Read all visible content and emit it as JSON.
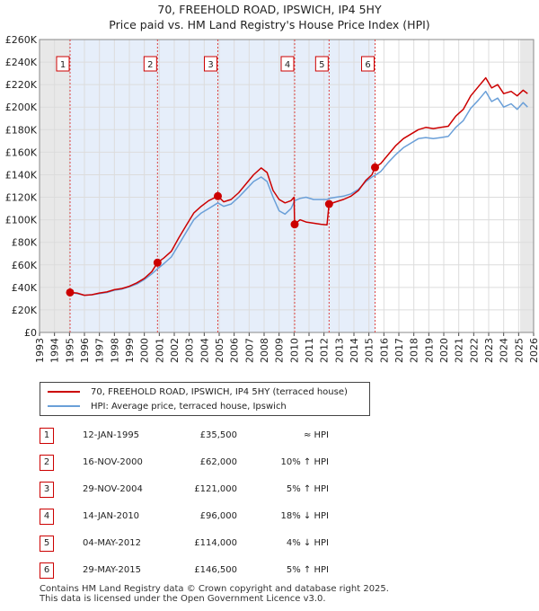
{
  "chart_data": {
    "type": "line",
    "title": "70, FREEHOLD ROAD, IPSWICH, IP4 5HY",
    "subtitle": "Price paid vs. HM Land Registry's House Price Index (HPI)",
    "xlim": [
      1993,
      2026
    ],
    "ylim": [
      0,
      260000
    ],
    "x_ticks": [
      1993,
      1994,
      1995,
      1996,
      1997,
      1998,
      1999,
      2000,
      2001,
      2002,
      2003,
      2004,
      2005,
      2006,
      2007,
      2008,
      2009,
      2010,
      2011,
      2012,
      2013,
      2014,
      2015,
      2016,
      2017,
      2018,
      2019,
      2020,
      2021,
      2022,
      2023,
      2024,
      2025,
      2026
    ],
    "y_ticks": [
      {
        "value": 0,
        "label": "£0"
      },
      {
        "value": 20000,
        "label": "£20K"
      },
      {
        "value": 40000,
        "label": "£40K"
      },
      {
        "value": 60000,
        "label": "£60K"
      },
      {
        "value": 80000,
        "label": "£80K"
      },
      {
        "value": 100000,
        "label": "£100K"
      },
      {
        "value": 120000,
        "label": "£120K"
      },
      {
        "value": 140000,
        "label": "£140K"
      },
      {
        "value": 160000,
        "label": "£160K"
      },
      {
        "value": 180000,
        "label": "£180K"
      },
      {
        "value": 200000,
        "label": "£200K"
      },
      {
        "value": 220000,
        "label": "£220K"
      },
      {
        "value": 240000,
        "label": "£240K"
      },
      {
        "value": 260000,
        "label": "£260K"
      }
    ],
    "shaded_ranges": [
      [
        1993,
        1995.04
      ],
      [
        2025.1,
        2026
      ]
    ],
    "sales_band": [
      1995.04,
      2015.41
    ],
    "series": [
      {
        "name": "70, FREEHOLD ROAD, IPSWICH, IP4 5HY (terraced house)",
        "color": "#cc0000",
        "points": [
          [
            1995.04,
            35500
          ],
          [
            1995.5,
            35000
          ],
          [
            1996,
            33000
          ],
          [
            1996.5,
            33500
          ],
          [
            1997,
            35000
          ],
          [
            1997.5,
            36000
          ],
          [
            1998,
            38000
          ],
          [
            1998.5,
            39000
          ],
          [
            1999,
            41000
          ],
          [
            1999.5,
            44000
          ],
          [
            2000,
            48000
          ],
          [
            2000.5,
            54000
          ],
          [
            2000.88,
            62000
          ],
          [
            2001.3,
            66000
          ],
          [
            2001.8,
            72000
          ],
          [
            2002.3,
            84000
          ],
          [
            2002.8,
            95000
          ],
          [
            2003.3,
            106000
          ],
          [
            2003.8,
            112000
          ],
          [
            2004.3,
            117000
          ],
          [
            2004.91,
            121000
          ],
          [
            2005.3,
            116000
          ],
          [
            2005.8,
            118000
          ],
          [
            2006.3,
            124000
          ],
          [
            2006.8,
            132000
          ],
          [
            2007.3,
            140000
          ],
          [
            2007.8,
            146000
          ],
          [
            2008.2,
            142000
          ],
          [
            2008.6,
            126000
          ],
          [
            2009.0,
            118000
          ],
          [
            2009.4,
            115000
          ],
          [
            2009.8,
            117000
          ],
          [
            2010.0,
            120000
          ],
          [
            2010.04,
            96000
          ],
          [
            2010.4,
            100000
          ],
          [
            2010.8,
            98000
          ],
          [
            2011.3,
            97000
          ],
          [
            2011.8,
            96000
          ],
          [
            2012.2,
            95500
          ],
          [
            2012.34,
            114000
          ],
          [
            2012.8,
            116000
          ],
          [
            2013.3,
            118000
          ],
          [
            2013.8,
            121000
          ],
          [
            2014.3,
            126000
          ],
          [
            2014.8,
            135000
          ],
          [
            2015.2,
            140000
          ],
          [
            2015.41,
            146500
          ],
          [
            2015.8,
            150000
          ],
          [
            2016.3,
            158000
          ],
          [
            2016.8,
            166000
          ],
          [
            2017.3,
            172000
          ],
          [
            2017.8,
            176000
          ],
          [
            2018.3,
            180000
          ],
          [
            2018.8,
            182000
          ],
          [
            2019.3,
            181000
          ],
          [
            2019.8,
            182000
          ],
          [
            2020.3,
            183000
          ],
          [
            2020.8,
            192000
          ],
          [
            2021.3,
            198000
          ],
          [
            2021.8,
            210000
          ],
          [
            2022.3,
            218000
          ],
          [
            2022.8,
            226000
          ],
          [
            2023.2,
            217000
          ],
          [
            2023.6,
            220000
          ],
          [
            2024.0,
            212000
          ],
          [
            2024.5,
            214000
          ],
          [
            2024.9,
            210000
          ],
          [
            2025.3,
            215000
          ],
          [
            2025.6,
            212000
          ]
        ]
      },
      {
        "name": "HPI: Average price, terraced house, Ipswich",
        "color": "#6a9fd8",
        "points": [
          [
            1995.04,
            35500
          ],
          [
            1995.5,
            34500
          ],
          [
            1996,
            33000
          ],
          [
            1996.5,
            33500
          ],
          [
            1997,
            34500
          ],
          [
            1997.5,
            35500
          ],
          [
            1998,
            37500
          ],
          [
            1998.5,
            38500
          ],
          [
            1999,
            40500
          ],
          [
            1999.5,
            43000
          ],
          [
            2000,
            47000
          ],
          [
            2000.5,
            52000
          ],
          [
            2000.88,
            56500
          ],
          [
            2001.3,
            61000
          ],
          [
            2001.8,
            67000
          ],
          [
            2002.3,
            78000
          ],
          [
            2002.8,
            89000
          ],
          [
            2003.3,
            100000
          ],
          [
            2003.8,
            106000
          ],
          [
            2004.3,
            110000
          ],
          [
            2004.91,
            115000
          ],
          [
            2005.3,
            112000
          ],
          [
            2005.8,
            114000
          ],
          [
            2006.3,
            120000
          ],
          [
            2006.8,
            127000
          ],
          [
            2007.3,
            134000
          ],
          [
            2007.8,
            138000
          ],
          [
            2008.2,
            134000
          ],
          [
            2008.6,
            120000
          ],
          [
            2009.0,
            108000
          ],
          [
            2009.4,
            105000
          ],
          [
            2009.8,
            110000
          ],
          [
            2010.04,
            117000
          ],
          [
            2010.4,
            119000
          ],
          [
            2010.8,
            120000
          ],
          [
            2011.3,
            118000
          ],
          [
            2011.8,
            118000
          ],
          [
            2012.2,
            118000
          ],
          [
            2012.34,
            119000
          ],
          [
            2012.8,
            120000
          ],
          [
            2013.3,
            121000
          ],
          [
            2013.8,
            123000
          ],
          [
            2014.3,
            127000
          ],
          [
            2014.8,
            134000
          ],
          [
            2015.2,
            138000
          ],
          [
            2015.41,
            139500
          ],
          [
            2015.8,
            143000
          ],
          [
            2016.3,
            151000
          ],
          [
            2016.8,
            158000
          ],
          [
            2017.3,
            164000
          ],
          [
            2017.8,
            168000
          ],
          [
            2018.3,
            172000
          ],
          [
            2018.8,
            173000
          ],
          [
            2019.3,
            172000
          ],
          [
            2019.8,
            173000
          ],
          [
            2020.3,
            174000
          ],
          [
            2020.8,
            182000
          ],
          [
            2021.3,
            188000
          ],
          [
            2021.8,
            199000
          ],
          [
            2022.3,
            206000
          ],
          [
            2022.8,
            214000
          ],
          [
            2023.2,
            205000
          ],
          [
            2023.6,
            208000
          ],
          [
            2024.0,
            200000
          ],
          [
            2024.5,
            203000
          ],
          [
            2024.9,
            198000
          ],
          [
            2025.3,
            204000
          ],
          [
            2025.6,
            200000
          ]
        ]
      }
    ],
    "sales": [
      {
        "label": "1",
        "x": 1995.04,
        "price": 35500
      },
      {
        "label": "2",
        "x": 2000.88,
        "price": 62000
      },
      {
        "label": "3",
        "x": 2004.91,
        "price": 121000
      },
      {
        "label": "4",
        "x": 2010.04,
        "price": 96000
      },
      {
        "label": "5",
        "x": 2012.34,
        "price": 114000
      },
      {
        "label": "6",
        "x": 2015.41,
        "price": 146500
      }
    ]
  },
  "legend": {
    "property_label": "70, FREEHOLD ROAD, IPSWICH, IP4 5HY (terraced house)",
    "hpi_label": "HPI: Average price, terraced house, Ipswich",
    "property_color": "#cc0000",
    "hpi_color": "#6a9fd8"
  },
  "transactions": [
    {
      "num": "1",
      "date": "12-JAN-1995",
      "price": "£35,500",
      "hpi": "≈ HPI"
    },
    {
      "num": "2",
      "date": "16-NOV-2000",
      "price": "£62,000",
      "hpi": "10% ↑ HPI"
    },
    {
      "num": "3",
      "date": "29-NOV-2004",
      "price": "£121,000",
      "hpi": "5% ↑ HPI"
    },
    {
      "num": "4",
      "date": "14-JAN-2010",
      "price": "£96,000",
      "hpi": "18% ↓ HPI"
    },
    {
      "num": "5",
      "date": "04-MAY-2012",
      "price": "£114,000",
      "hpi": "4% ↓ HPI"
    },
    {
      "num": "6",
      "date": "29-MAY-2015",
      "price": "£146,500",
      "hpi": "5% ↑ HPI"
    }
  ],
  "footer": {
    "line1": "Contains HM Land Registry data © Crown copyright and database right 2025.",
    "line2": "This data is licensed under the Open Government Licence v3.0."
  }
}
